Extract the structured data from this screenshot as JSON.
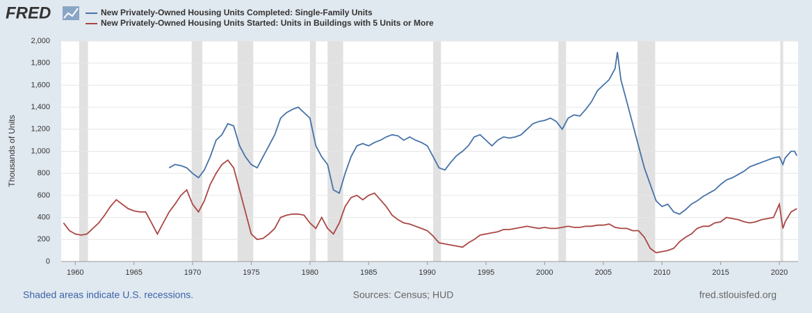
{
  "chart_data": {
    "type": "line",
    "logo": "FRED",
    "y_label": "Thousands of Units",
    "footer_left": "Shaded areas indicate U.S. recessions.",
    "footer_center": "Sources: Census; HUD",
    "footer_right": "fred.stlouisfed.org",
    "xlim": [
      1958.8,
      2021.6
    ],
    "xticks": [
      1960,
      1965,
      1970,
      1975,
      1980,
      1985,
      1990,
      1995,
      2000,
      2005,
      2010,
      2015,
      2020
    ],
    "ylim": [
      0,
      2000
    ],
    "yticks": [
      0,
      200,
      400,
      600,
      800,
      {
        "value": 1000,
        "label": "1,000"
      },
      {
        "value": 1200,
        "label": "1,200"
      },
      {
        "value": 1400,
        "label": "1,400"
      },
      {
        "value": 1600,
        "label": "1,600"
      },
      {
        "value": 1800,
        "label": "1,800"
      },
      {
        "value": 2000,
        "label": "2,000"
      }
    ],
    "grid": true,
    "recessions": [
      [
        1960.33,
        1961.08
      ],
      [
        1969.92,
        1970.83
      ],
      [
        1973.83,
        1975.17
      ],
      [
        1980.0,
        1980.5
      ],
      [
        1981.5,
        1982.83
      ],
      [
        1990.5,
        1991.17
      ],
      [
        2001.17,
        2001.83
      ],
      [
        2007.92,
        2009.42
      ],
      [
        2020.08,
        2020.33
      ]
    ],
    "series": [
      {
        "name": "New Privately-Owned Housing Units Completed: Single-Family Units",
        "color": "#4572a7",
        "x": [
          1968.0,
          1968.5,
          1969.0,
          1969.5,
          1970.0,
          1970.5,
          1971.0,
          1971.5,
          1972.0,
          1972.5,
          1973.0,
          1973.5,
          1974.0,
          1974.5,
          1975.0,
          1975.5,
          1976.0,
          1976.5,
          1977.0,
          1977.5,
          1978.0,
          1978.5,
          1979.0,
          1979.5,
          1980.0,
          1980.5,
          1981.0,
          1981.5,
          1982.0,
          1982.5,
          1983.0,
          1983.5,
          1984.0,
          1984.5,
          1985.0,
          1985.5,
          1986.0,
          1986.5,
          1987.0,
          1987.5,
          1988.0,
          1988.5,
          1989.0,
          1989.5,
          1990.0,
          1990.5,
          1991.0,
          1991.5,
          1992.0,
          1992.5,
          1993.0,
          1993.5,
          1994.0,
          1994.5,
          1995.0,
          1995.5,
          1996.0,
          1996.5,
          1997.0,
          1997.5,
          1998.0,
          1998.5,
          1999.0,
          1999.5,
          2000.0,
          2000.5,
          2001.0,
          2001.5,
          2002.0,
          2002.5,
          2003.0,
          2003.5,
          2004.0,
          2004.5,
          2005.0,
          2005.5,
          2006.0,
          2006.2,
          2006.5,
          2007.0,
          2007.5,
          2008.0,
          2008.5,
          2009.0,
          2009.5,
          2010.0,
          2010.5,
          2011.0,
          2011.5,
          2012.0,
          2012.5,
          2013.0,
          2013.5,
          2014.0,
          2014.5,
          2015.0,
          2015.5,
          2016.0,
          2016.5,
          2017.0,
          2017.5,
          2018.0,
          2018.5,
          2019.0,
          2019.5,
          2020.0,
          2020.3,
          2020.5,
          2021.0,
          2021.3,
          2021.5
        ],
        "values": [
          850,
          880,
          870,
          850,
          800,
          760,
          830,
          950,
          1100,
          1150,
          1250,
          1230,
          1050,
          950,
          880,
          850,
          950,
          1050,
          1150,
          1300,
          1350,
          1380,
          1400,
          1350,
          1300,
          1050,
          950,
          880,
          650,
          620,
          800,
          950,
          1050,
          1070,
          1050,
          1080,
          1100,
          1130,
          1150,
          1140,
          1100,
          1130,
          1100,
          1080,
          1050,
          950,
          850,
          830,
          900,
          960,
          1000,
          1050,
          1130,
          1150,
          1100,
          1050,
          1100,
          1130,
          1120,
          1130,
          1150,
          1200,
          1250,
          1270,
          1280,
          1300,
          1270,
          1200,
          1300,
          1330,
          1320,
          1380,
          1450,
          1550,
          1600,
          1650,
          1750,
          1900,
          1650,
          1450,
          1250,
          1050,
          850,
          700,
          550,
          500,
          520,
          450,
          430,
          470,
          520,
          550,
          590,
          620,
          650,
          700,
          740,
          760,
          790,
          820,
          860,
          880,
          900,
          920,
          940,
          950,
          880,
          940,
          1000,
          1000,
          960
        ]
      },
      {
        "name": "New Privately-Owned Housing Units Started: Units in Buildings with 5 Units or More",
        "color": "#aa4643",
        "x": [
          1959.0,
          1959.5,
          1960.0,
          1960.5,
          1961.0,
          1961.5,
          1962.0,
          1962.5,
          1963.0,
          1963.5,
          1964.0,
          1964.5,
          1965.0,
          1965.5,
          1966.0,
          1966.5,
          1967.0,
          1967.5,
          1968.0,
          1968.5,
          1969.0,
          1969.5,
          1970.0,
          1970.5,
          1971.0,
          1971.5,
          1972.0,
          1972.5,
          1973.0,
          1973.5,
          1974.0,
          1974.5,
          1975.0,
          1975.5,
          1976.0,
          1976.5,
          1977.0,
          1977.5,
          1978.0,
          1978.5,
          1979.0,
          1979.5,
          1980.0,
          1980.5,
          1981.0,
          1981.5,
          1982.0,
          1982.5,
          1983.0,
          1983.5,
          1984.0,
          1984.5,
          1985.0,
          1985.5,
          1986.0,
          1986.5,
          1987.0,
          1987.5,
          1988.0,
          1988.5,
          1989.0,
          1989.5,
          1990.0,
          1990.5,
          1991.0,
          1991.5,
          1992.0,
          1992.5,
          1993.0,
          1993.5,
          1994.0,
          1994.5,
          1995.0,
          1995.5,
          1996.0,
          1996.5,
          1997.0,
          1997.5,
          1998.0,
          1998.5,
          1999.0,
          1999.5,
          2000.0,
          2000.5,
          2001.0,
          2001.5,
          2002.0,
          2002.5,
          2003.0,
          2003.5,
          2004.0,
          2004.5,
          2005.0,
          2005.5,
          2006.0,
          2006.5,
          2007.0,
          2007.5,
          2008.0,
          2008.5,
          2009.0,
          2009.5,
          2010.0,
          2010.5,
          2011.0,
          2011.5,
          2012.0,
          2012.5,
          2013.0,
          2013.5,
          2014.0,
          2014.5,
          2015.0,
          2015.5,
          2016.0,
          2016.5,
          2017.0,
          2017.5,
          2018.0,
          2018.5,
          2019.0,
          2019.5,
          2020.0,
          2020.3,
          2020.5,
          2021.0,
          2021.5
        ],
        "values": [
          350,
          280,
          250,
          240,
          250,
          300,
          350,
          420,
          500,
          560,
          520,
          480,
          460,
          450,
          450,
          350,
          250,
          350,
          450,
          520,
          600,
          650,
          520,
          450,
          550,
          700,
          800,
          880,
          920,
          850,
          650,
          450,
          250,
          200,
          210,
          250,
          300,
          400,
          420,
          430,
          430,
          420,
          350,
          300,
          400,
          300,
          250,
          350,
          500,
          580,
          600,
          560,
          600,
          620,
          560,
          500,
          420,
          380,
          350,
          340,
          320,
          300,
          280,
          230,
          170,
          160,
          150,
          140,
          130,
          170,
          200,
          240,
          250,
          260,
          270,
          290,
          290,
          300,
          310,
          320,
          310,
          300,
          310,
          300,
          300,
          310,
          320,
          310,
          310,
          320,
          320,
          330,
          330,
          340,
          310,
          300,
          300,
          280,
          280,
          220,
          120,
          80,
          90,
          100,
          120,
          180,
          220,
          250,
          300,
          320,
          320,
          350,
          360,
          400,
          390,
          380,
          360,
          350,
          360,
          380,
          390,
          400,
          520,
          300,
          360,
          450,
          480
        ]
      }
    ]
  }
}
